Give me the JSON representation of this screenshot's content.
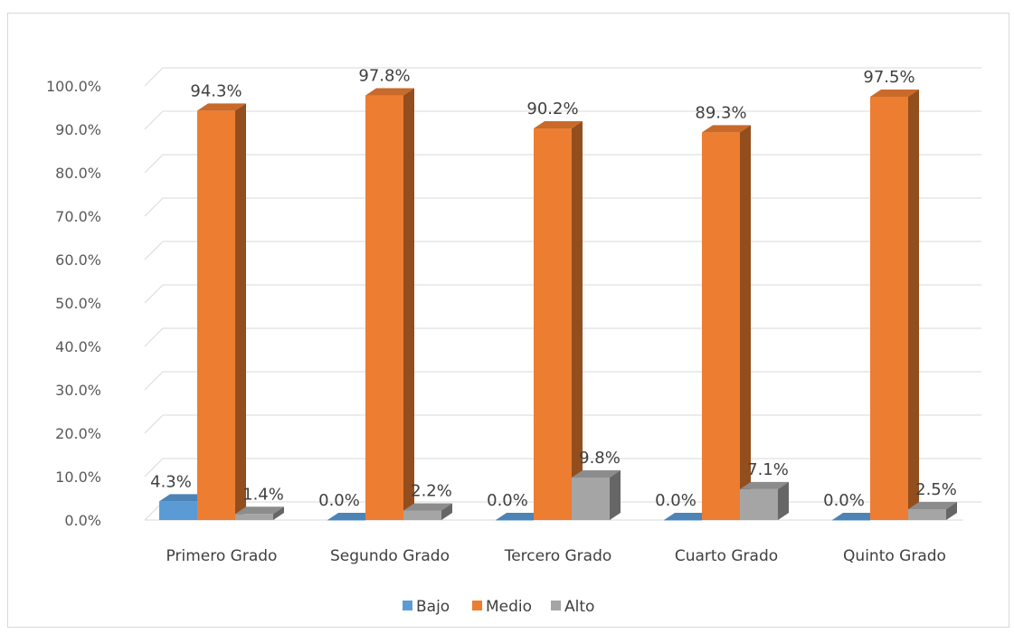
{
  "chart_data": {
    "type": "bar",
    "categories": [
      "Primero Grado",
      "Segundo Grado",
      "Tercero Grado",
      "Cuarto Grado",
      "Quinto Grado"
    ],
    "series": [
      {
        "name": "Bajo",
        "color": "#5b9bd5",
        "values": [
          4.3,
          0.0,
          0.0,
          0.0,
          0.0
        ],
        "labels": [
          "4.3%",
          "0.0%",
          "0.0%",
          "0.0%",
          "0.0%"
        ]
      },
      {
        "name": "Medio",
        "color": "#ed7d31",
        "values": [
          94.3,
          97.8,
          90.2,
          89.3,
          97.5
        ],
        "labels": [
          "94.3%",
          "97.8%",
          "90.2%",
          "89.3%",
          "97.5%"
        ]
      },
      {
        "name": "Alto",
        "color": "#a5a5a5",
        "values": [
          1.4,
          2.2,
          9.8,
          7.1,
          2.5
        ],
        "labels": [
          "1.4%",
          "2.2%",
          "9.8%",
          "7.1%",
          "2.5%"
        ]
      }
    ],
    "y_ticks": [
      "0.0%",
      "10.0%",
      "20.0%",
      "30.0%",
      "40.0%",
      "50.0%",
      "60.0%",
      "70.0%",
      "80.0%",
      "90.0%",
      "100.0%"
    ],
    "ylim": [
      0,
      100
    ],
    "grid": true,
    "legend_position": "bottom",
    "style": "3d-clustered-column"
  }
}
